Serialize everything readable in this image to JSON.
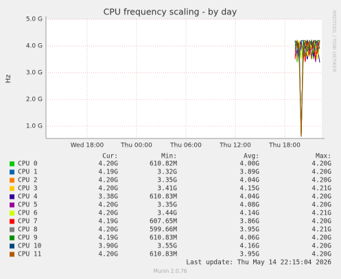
{
  "chart_data": {
    "type": "line",
    "title": "CPU frequency scaling - by day",
    "y_label": "Hz",
    "side_text": "RRDTOOL / TOBI OETIKER",
    "legend_headers": [
      "Cur:",
      "Min:",
      "Avg:",
      "Max:"
    ],
    "last_update": "Last update: Thu May 14 22:15:04 2026",
    "footer": "Munin 2.0.76",
    "grid": true,
    "xlim": [
      13,
      46.5
    ],
    "xticks": [
      {
        "value": 18,
        "label": "Wed 18:00"
      },
      {
        "value": 24,
        "label": "Thu 00:00"
      },
      {
        "value": 30,
        "label": "Thu 06:00"
      },
      {
        "value": 36,
        "label": "Thu 12:00"
      },
      {
        "value": 42,
        "label": "Thu 18:00"
      }
    ],
    "ylim": [
      0.54,
      5.0
    ],
    "yticks": [
      {
        "value": 1,
        "label": "1.0 G"
      },
      {
        "value": 2,
        "label": "2.0 G"
      },
      {
        "value": 3,
        "label": "3.0 G"
      },
      {
        "value": 4,
        "label": "4.0 G"
      },
      {
        "value": 5,
        "label": "5.0 G"
      }
    ],
    "x": [
      43.25,
      43.5,
      43.75,
      44.0,
      44.25,
      44.5,
      44.75,
      45.0,
      45.25,
      45.5,
      45.75,
      46.0,
      46.25
    ],
    "series": [
      {
        "name": "CPU 0",
        "color": "#00cc00",
        "values": [
          4.2,
          3.4,
          4.2,
          0.61,
          4.2,
          3.6,
          4.2,
          3.9,
          4.2,
          3.5,
          4.2,
          4.1,
          4.2
        ],
        "cur": "4.20G",
        "min": "610.82M",
        "avg": "4.00G",
        "max": "4.20G"
      },
      {
        "name": "CPU 1",
        "color": "#0066b3",
        "values": [
          3.9,
          4.2,
          3.4,
          4.1,
          3.7,
          4.2,
          3.5,
          4.0,
          4.2,
          3.6,
          4.0,
          3.8,
          4.19
        ],
        "cur": "4.19G",
        "min": "3.32G",
        "avg": "3.89G",
        "max": "4.20G"
      },
      {
        "name": "CPU 2",
        "color": "#ff8000",
        "values": [
          4.2,
          3.5,
          4.2,
          4.0,
          3.4,
          4.2,
          4.1,
          3.6,
          4.2,
          4.0,
          3.7,
          4.2,
          4.2
        ],
        "cur": "4.20G",
        "min": "3.35G",
        "avg": "4.04G",
        "max": "4.20G"
      },
      {
        "name": "CPU 3",
        "color": "#ffcc00",
        "values": [
          4.1,
          4.2,
          3.9,
          4.21,
          3.5,
          4.2,
          4.2,
          3.8,
          4.1,
          4.2,
          3.9,
          4.2,
          4.2
        ],
        "cur": "4.20G",
        "min": "3.41G",
        "avg": "4.15G",
        "max": "4.21G"
      },
      {
        "name": "CPU 4",
        "color": "#330099",
        "values": [
          4.2,
          3.7,
          4.2,
          0.62,
          4.2,
          4.0,
          3.5,
          4.2,
          4.1,
          3.6,
          4.2,
          3.9,
          3.38
        ],
        "cur": "3.38G",
        "min": "610.83M",
        "avg": "4.04G",
        "max": "4.20G"
      },
      {
        "name": "CPU 5",
        "color": "#990099",
        "values": [
          3.6,
          4.2,
          4.0,
          4.2,
          3.5,
          4.1,
          4.2,
          3.8,
          4.2,
          4.0,
          3.4,
          4.2,
          4.2
        ],
        "cur": "4.20G",
        "min": "3.35G",
        "avg": "4.08G",
        "max": "4.20G"
      },
      {
        "name": "CPU 6",
        "color": "#ccff00",
        "values": [
          4.2,
          3.9,
          4.21,
          3.5,
          4.2,
          4.1,
          3.6,
          4.2,
          3.9,
          4.2,
          4.0,
          3.5,
          4.2
        ],
        "cur": "4.20G",
        "min": "3.44G",
        "avg": "4.14G",
        "max": "4.21G"
      },
      {
        "name": "CPU 7",
        "color": "#ff0000",
        "values": [
          3.5,
          4.2,
          3.8,
          0.61,
          4.0,
          3.4,
          4.2,
          3.7,
          3.9,
          4.2,
          3.5,
          4.0,
          4.19
        ],
        "cur": "4.19G",
        "min": "607.65M",
        "avg": "3.86G",
        "max": "4.20G"
      },
      {
        "name": "CPU 8",
        "color": "#808080",
        "values": [
          4.2,
          3.6,
          4.0,
          0.6,
          4.2,
          3.7,
          3.9,
          4.21,
          3.5,
          4.2,
          3.8,
          4.1,
          4.2
        ],
        "cur": "4.20G",
        "min": "599.66M",
        "avg": "3.95G",
        "max": "4.21G"
      },
      {
        "name": "CPU 9",
        "color": "#008f00",
        "values": [
          4.0,
          4.2,
          3.6,
          0.61,
          4.2,
          4.2,
          3.8,
          4.0,
          4.2,
          3.7,
          4.1,
          4.2,
          4.19
        ],
        "cur": "4.19G",
        "min": "610.83M",
        "avg": "4.06G",
        "max": "4.20G"
      },
      {
        "name": "CPU 10",
        "color": "#00487d",
        "values": [
          4.2,
          4.1,
          3.6,
          4.2,
          4.2,
          3.9,
          4.2,
          4.0,
          3.6,
          4.2,
          4.2,
          4.1,
          3.9
        ],
        "cur": "3.90G",
        "min": "3.55G",
        "avg": "4.16G",
        "max": "4.20G"
      },
      {
        "name": "CPU 11",
        "color": "#b35a00",
        "values": [
          3.8,
          4.2,
          4.0,
          0.61,
          3.6,
          4.2,
          3.9,
          4.2,
          3.5,
          4.1,
          4.2,
          3.7,
          4.2
        ],
        "cur": "4.20G",
        "min": "610.83M",
        "avg": "3.95G",
        "max": "4.20G"
      }
    ]
  }
}
